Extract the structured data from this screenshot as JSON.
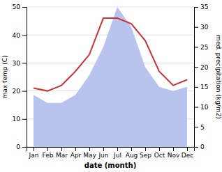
{
  "chart_data": {
    "type": "line",
    "xlabel": "date (month)",
    "ylabel": "max temp (C)",
    "y2label": "med. precipitation (kg/m2)",
    "categories": [
      "Jan",
      "Feb",
      "Mar",
      "Apr",
      "May",
      "Jun",
      "Jul",
      "Aug",
      "Sep",
      "Oct",
      "Nov",
      "Dec"
    ],
    "series": [
      {
        "type": "area",
        "axis": "y2",
        "color": "#b8c4ee",
        "values": [
          13,
          11,
          11,
          13,
          18,
          25,
          35,
          30,
          20,
          15,
          14,
          15
        ]
      },
      {
        "type": "line",
        "color": "#cc3333",
        "values": [
          21,
          20,
          22,
          27,
          33,
          46,
          46,
          44,
          38,
          27,
          22,
          24
        ]
      }
    ],
    "ylim": [
      0,
      50
    ],
    "yticks": [
      0,
      10,
      20,
      30,
      40,
      50
    ],
    "y2lim": [
      0,
      35
    ],
    "y2ticks": [
      0,
      5,
      10,
      15,
      20,
      25,
      30,
      35
    ],
    "grid": true
  }
}
